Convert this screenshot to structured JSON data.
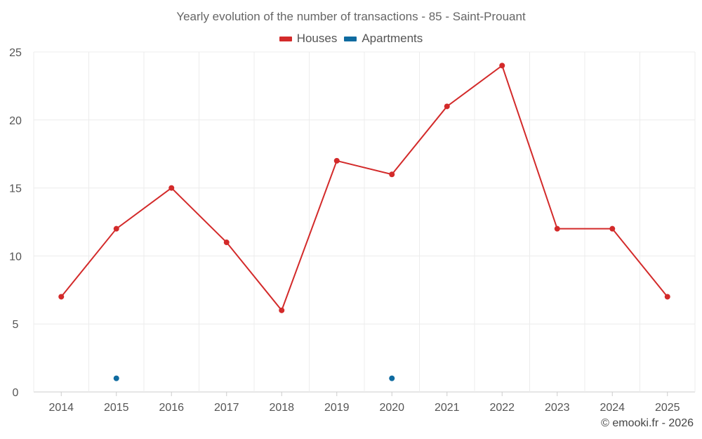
{
  "chart_data": {
    "type": "line",
    "title": "Yearly evolution of the number of transactions - 85 - Saint-Prouant",
    "categories": [
      "2014",
      "2015",
      "2016",
      "2017",
      "2018",
      "2019",
      "2020",
      "2021",
      "2022",
      "2023",
      "2024",
      "2025"
    ],
    "series": [
      {
        "name": "Houses",
        "color": "#d32a2a",
        "values": [
          7,
          12,
          15,
          11,
          6,
          17,
          16,
          21,
          24,
          12,
          12,
          7
        ],
        "line": true
      },
      {
        "name": "Apartments",
        "color": "#0f6ba0",
        "values": [
          null,
          1,
          null,
          null,
          null,
          null,
          1,
          null,
          null,
          null,
          null,
          null
        ],
        "line": false
      }
    ],
    "ylim": [
      0,
      25
    ],
    "yticks": [
      0,
      5,
      10,
      15,
      20,
      25
    ],
    "xlabel": "",
    "ylabel": "",
    "grid": true,
    "legend": "top-center"
  },
  "credit": "© emooki.fr - 2026"
}
